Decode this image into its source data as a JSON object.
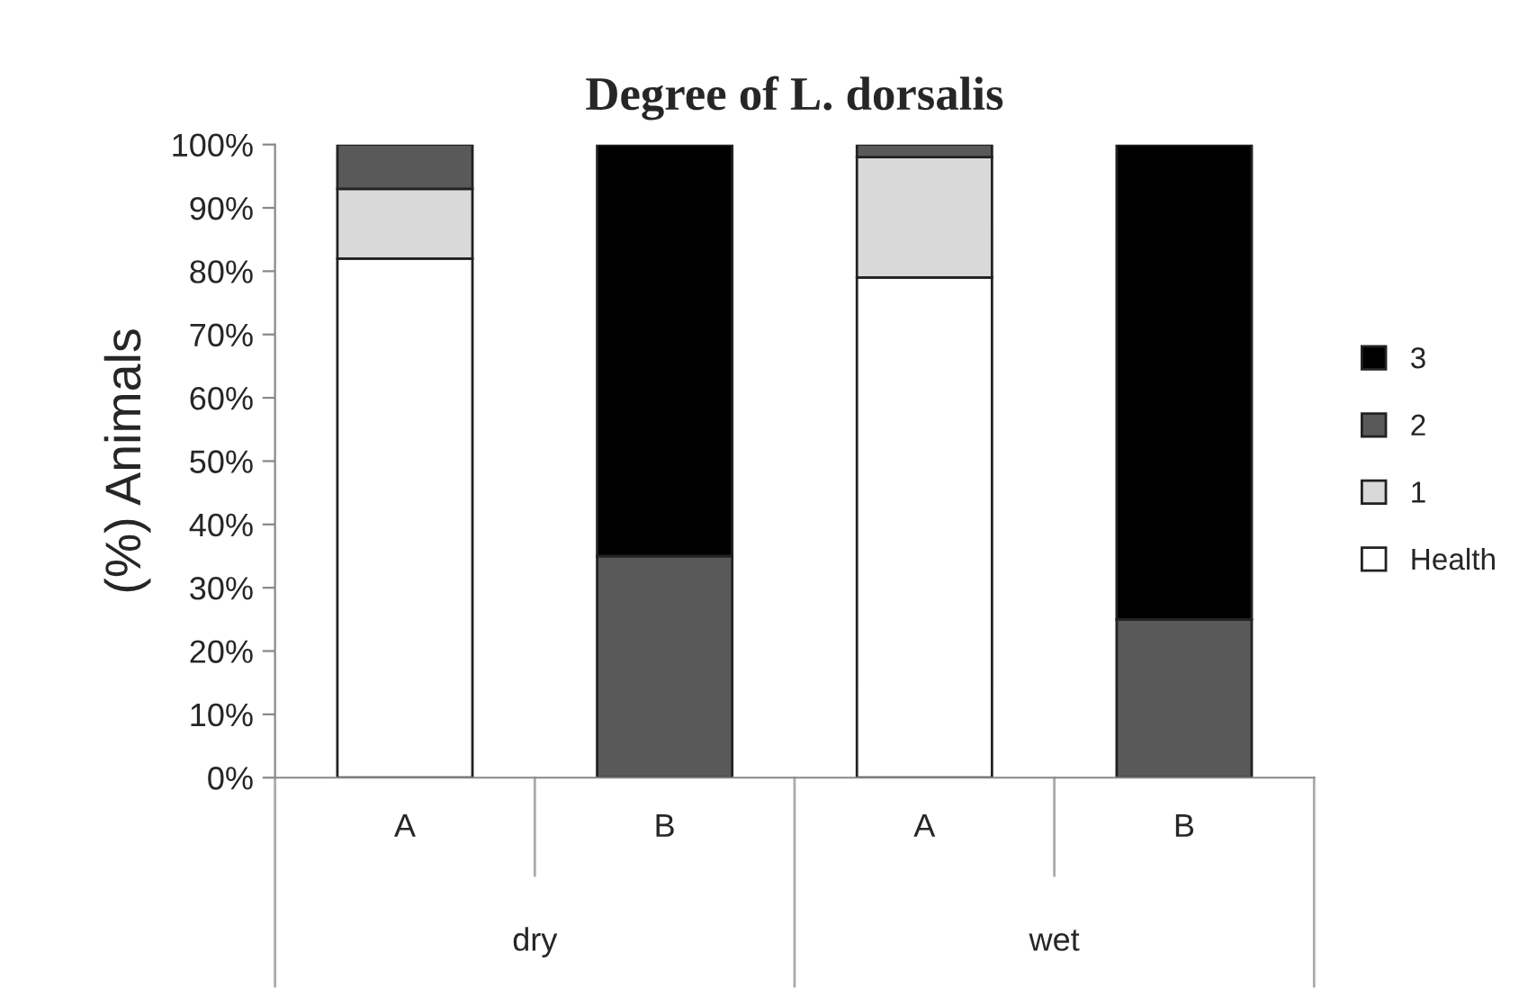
{
  "chart_data": {
    "type": "bar",
    "title": "Degree of L. dorsalis",
    "ylabel": "(%) Animals",
    "stacked": true,
    "categories": [
      "A",
      "B",
      "A",
      "B"
    ],
    "annotations": [
      "dry",
      "wet"
    ],
    "series": [
      {
        "name": "Health",
        "color": "#ffffff",
        "values": [
          82,
          0,
          79,
          0
        ]
      },
      {
        "name": "1",
        "color": "#d9d9d9",
        "values": [
          11,
          0,
          19,
          0
        ]
      },
      {
        "name": "2",
        "color": "#595959",
        "values": [
          7,
          35,
          2,
          25
        ]
      },
      {
        "name": "3",
        "color": "#000000",
        "values": [
          0,
          65,
          0,
          75
        ]
      }
    ],
    "ylim": [
      0,
      100
    ],
    "yticks": [
      {
        "value": 0,
        "label": "0%"
      },
      {
        "value": 10,
        "label": "10%"
      },
      {
        "value": 20,
        "label": "20%"
      },
      {
        "value": 30,
        "label": "30%"
      },
      {
        "value": 40,
        "label": "40%"
      },
      {
        "value": 50,
        "label": "50%"
      },
      {
        "value": 60,
        "label": "60%"
      },
      {
        "value": 70,
        "label": "70%"
      },
      {
        "value": 80,
        "label": "80%"
      },
      {
        "value": 90,
        "label": "90%"
      },
      {
        "value": 100,
        "label": "100%"
      }
    ],
    "grid": false,
    "legend": "right"
  }
}
